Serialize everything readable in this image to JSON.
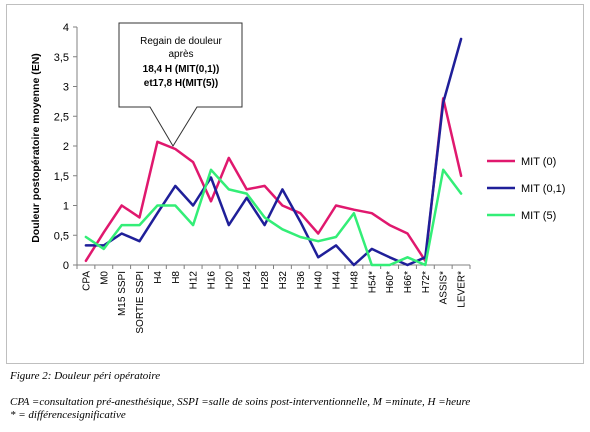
{
  "chart_data": {
    "type": "line",
    "title": "",
    "ylabel": "Douleur postopératoire moyenne (EN)",
    "xlabel": "",
    "ylim": [
      0,
      4
    ],
    "yticks": [
      "0",
      "0,5",
      "1",
      "1,5",
      "2",
      "2,5",
      "3",
      "3,5",
      "4"
    ],
    "categories": [
      "CPA",
      "M0",
      "M15 SSPI",
      "SORTIE SSPI",
      "H4",
      "H8",
      "H12",
      "H16",
      "H20",
      "H24",
      "H28",
      "H32",
      "H36",
      "H40",
      "H44",
      "H48",
      "H54*",
      "H60*",
      "H66*",
      "H72*",
      "ASSIS*",
      "LEVER*"
    ],
    "grid": false,
    "legend_position": "right",
    "series": [
      {
        "name": "MIT (0)",
        "color": "#e0186e",
        "values": [
          0.07,
          0.55,
          1.0,
          0.8,
          2.07,
          1.95,
          1.73,
          1.07,
          1.8,
          1.27,
          1.33,
          1.0,
          0.87,
          0.53,
          1.0,
          0.93,
          0.87,
          0.67,
          0.53,
          0.07,
          2.8,
          1.5
        ]
      },
      {
        "name": "MIT (0,1)",
        "color": "#1f1f99",
        "values": [
          0.33,
          0.33,
          0.53,
          0.4,
          0.87,
          1.33,
          1.0,
          1.47,
          0.67,
          1.13,
          0.67,
          1.27,
          0.73,
          0.13,
          0.33,
          0.0,
          0.27,
          0.13,
          0.0,
          0.13,
          2.73,
          3.8
        ]
      },
      {
        "name": "MIT (5)",
        "color": "#33ee77",
        "values": [
          0.47,
          0.27,
          0.67,
          0.67,
          1.0,
          1.0,
          0.67,
          1.6,
          1.27,
          1.2,
          0.8,
          0.6,
          0.47,
          0.4,
          0.47,
          0.87,
          0.0,
          0.0,
          0.13,
          0.0,
          1.6,
          1.2
        ]
      }
    ],
    "annotation": {
      "lines": [
        "Regain de douleur",
        "après",
        "18,4 H (MIT(0,1))",
        "et17,8 H(MIT(5))"
      ]
    }
  },
  "caption": "Figure 2: Douleur péri opératoire",
  "notes": [
    "CPA =consultation pré-anesthésique, SSPI =salle de soins post-interventionnelle, M =minute, H =heure",
    "* = différencesignificative"
  ]
}
